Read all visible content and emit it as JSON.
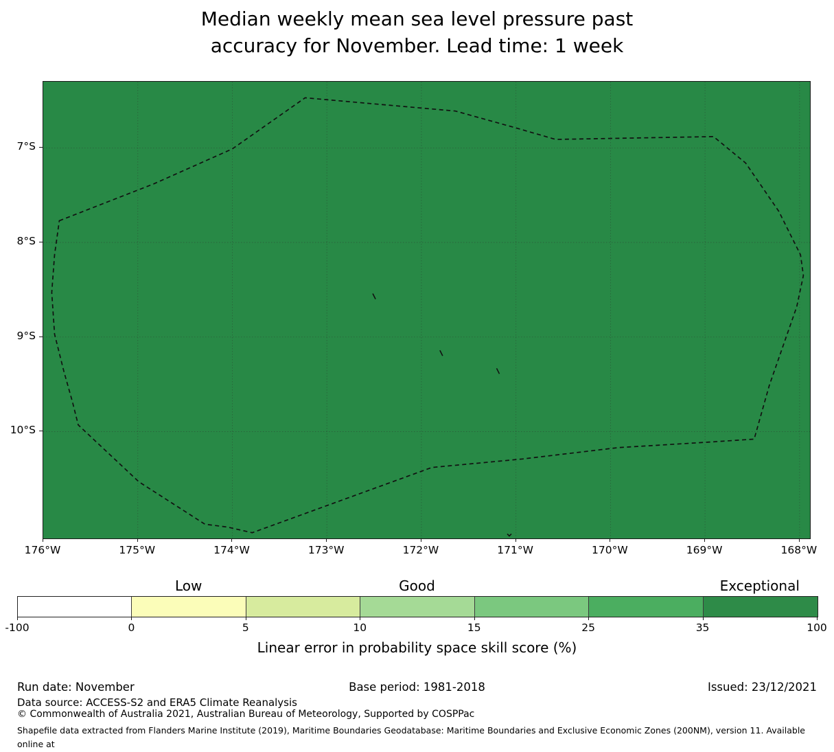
{
  "title": "Median weekly mean sea level pressure past\naccuracy for November. Lead time: 1 week",
  "colors": {
    "map_fill": "#288946",
    "map_border": "#1a1a1a",
    "gridline": "#2f2f2f",
    "eez_boundary": "#111111",
    "island": "#111111"
  },
  "chart_data": {
    "type": "heatmap",
    "title": "Median weekly mean sea level pressure past accuracy for November. Lead time: 1 week",
    "geo": {
      "lon_range": [
        -176.0,
        -167.89
      ],
      "lat_range": [
        -6.3,
        -11.13
      ],
      "grid_lons": [
        -175,
        -174,
        -173,
        -172,
        -171,
        -170,
        -169,
        -168
      ],
      "grid_lats": [
        -7,
        -8,
        -9,
        -10
      ]
    },
    "x_axis_ticks": [
      {
        "label": "176°W",
        "lon": -176
      },
      {
        "label": "175°W",
        "lon": -175
      },
      {
        "label": "174°W",
        "lon": -174
      },
      {
        "label": "173°W",
        "lon": -173
      },
      {
        "label": "172°W",
        "lon": -172
      },
      {
        "label": "171°W",
        "lon": -171
      },
      {
        "label": "170°W",
        "lon": -170
      },
      {
        "label": "169°W",
        "lon": -169
      },
      {
        "label": "168°W",
        "lon": -168
      }
    ],
    "y_axis_ticks": [
      {
        "label": "7°S",
        "lat": -7
      },
      {
        "label": "8°S",
        "lat": -8
      },
      {
        "label": "9°S",
        "lat": -9
      },
      {
        "label": "10°S",
        "lat": -10
      }
    ],
    "region_fill_value_category": "Exceptional (35-100)",
    "eez_boundary": [
      [
        -175.83,
        -7.77
      ],
      [
        -174.83,
        -7.38
      ],
      [
        -174.0,
        -7.01
      ],
      [
        -173.23,
        -6.47
      ],
      [
        -171.64,
        -6.61
      ],
      [
        -171.03,
        -6.78
      ],
      [
        -170.58,
        -6.91
      ],
      [
        -168.91,
        -6.88
      ],
      [
        -168.57,
        -7.16
      ],
      [
        -168.22,
        -7.67
      ],
      [
        -167.99,
        -8.13
      ],
      [
        -167.96,
        -8.35
      ],
      [
        -168.03,
        -8.68
      ],
      [
        -168.32,
        -9.51
      ],
      [
        -168.48,
        -10.08
      ],
      [
        -168.94,
        -10.11
      ],
      [
        -169.92,
        -10.17
      ],
      [
        -170.93,
        -10.29
      ],
      [
        -171.89,
        -10.38
      ],
      [
        -173.79,
        -11.07
      ],
      [
        -174.05,
        -11.01
      ],
      [
        -174.29,
        -10.98
      ],
      [
        -174.99,
        -10.53
      ],
      [
        -175.63,
        -9.93
      ],
      [
        -175.69,
        -9.69
      ],
      [
        -175.78,
        -9.37
      ],
      [
        -175.88,
        -8.97
      ],
      [
        -175.91,
        -8.53
      ],
      [
        -175.88,
        -8.13
      ]
    ],
    "islands": [
      [
        -172.5,
        -8.57
      ],
      [
        -171.79,
        -9.17
      ],
      [
        -171.19,
        -9.36
      ],
      [
        -171.07,
        -11.09
      ]
    ]
  },
  "colorbar": {
    "boundaries": [
      -100,
      0,
      5,
      10,
      15,
      25,
      35,
      100
    ],
    "tick_labels": [
      "-100",
      "0",
      "5",
      "10",
      "15",
      "25",
      "35",
      "100"
    ],
    "segment_colors": [
      "#ffffff",
      "#fbfdb9",
      "#d7eb9e",
      "#a5da96",
      "#7bc87f",
      "#4bae60",
      "#2e8b48"
    ],
    "category_labels": [
      {
        "text": "Low",
        "segment_index": 1
      },
      {
        "text": "Good",
        "segment_index": 3
      },
      {
        "text": "Exceptional",
        "segment_index": 6
      }
    ],
    "axis_label": "Linear error in probability space skill score (%)"
  },
  "footer": {
    "run_date": "Run date: November",
    "base_period": "Base period: 1981-2018",
    "issued": "Issued: 23/12/2021",
    "data_source": "Data source: ACCESS-S2 and ERA5 Climate Reanalysis",
    "copyright": "© Commonwealth of Australia 2021, Australian Bureau of Meteorology, Supported by COSPPac",
    "shapefile_note": "Shapefile data extracted from Flanders Marine Institute (2019), Maritime Boundaries Geodatabase: Maritime Boundaries and Exclusive Economic Zones (200NM), version 11. Available online at\nhttp://www.marineregions.org/."
  }
}
